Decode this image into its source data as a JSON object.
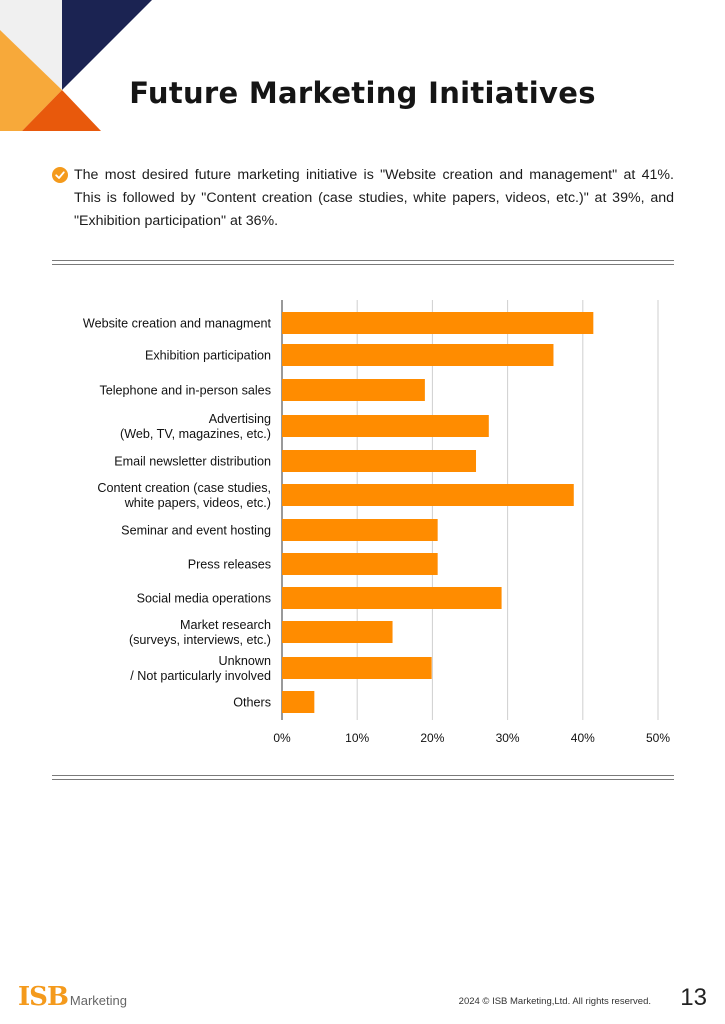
{
  "header": {
    "title": "Future Marketing Initiatives"
  },
  "summary": {
    "icon": "check-circle-icon",
    "text": "The most desired future marketing initiative is \"Website creation and management\" at 41%. This is followed by \"Content creation (case studies, white papers, videos, etc.)\" at 39%, and \"Exhibition participation\" at 36%."
  },
  "colors": {
    "bar": "#ff8c00",
    "accent_orange": "#f49a1c",
    "accent_dark_orange": "#e8590c",
    "navy": "#1b2352",
    "light_gray": "#f0f0f0"
  },
  "chart_data": {
    "type": "bar",
    "orientation": "horizontal",
    "categories": [
      [
        "Website creation and managment"
      ],
      [
        "Exhibition participation"
      ],
      [
        "Telephone and in-person sales"
      ],
      [
        "Advertising",
        "(Web, TV, magazines, etc.)"
      ],
      [
        "Email newsletter distribution"
      ],
      [
        "Content creation (case studies,",
        "white papers, videos, etc.)"
      ],
      [
        "Seminar and event hosting"
      ],
      [
        "Press releases"
      ],
      [
        "Social media operations"
      ],
      [
        "Market research",
        "(surveys, interviews, etc.)"
      ],
      [
        "Unknown",
        "/ Not particularly involved"
      ],
      [
        "Others"
      ]
    ],
    "values": [
      41.4,
      36.1,
      19.0,
      27.5,
      25.8,
      38.8,
      20.7,
      20.7,
      29.2,
      14.7,
      19.9,
      4.3
    ],
    "xlim": [
      0,
      50
    ],
    "xticks": [
      "0%",
      "10%",
      "20%",
      "30%",
      "40%",
      "50%"
    ],
    "grid": true
  },
  "footer": {
    "logo_primary": "ISB",
    "logo_secondary": "Marketing",
    "copyright": "2024 © ISB Marketing,Ltd.   All rights reserved.",
    "page_number": "13"
  }
}
